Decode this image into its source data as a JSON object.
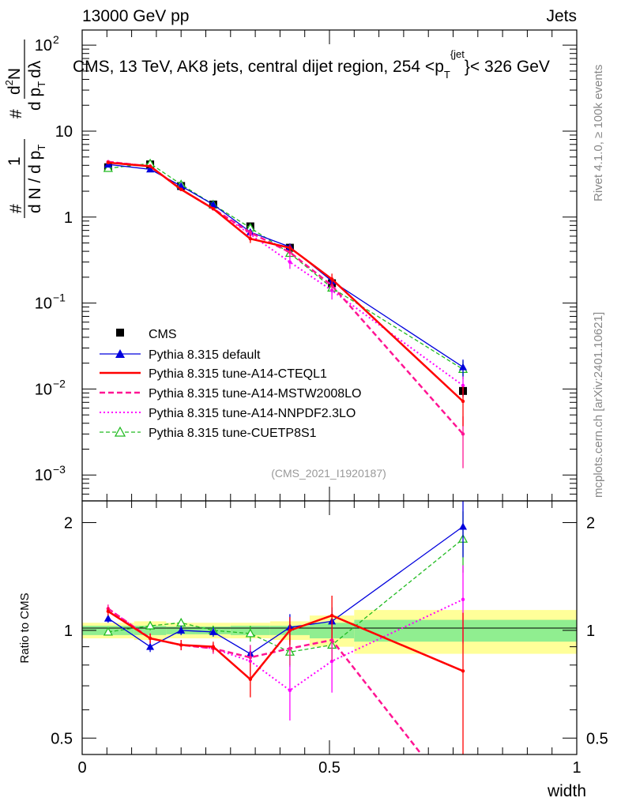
{
  "header": {
    "left": "13000 GeV pp",
    "right": "Jets",
    "side_top": "Rivet 4.1.0, ≥ 100k events",
    "side_bottom": "mcplots.cern.ch [arXiv:2401.10621]",
    "analysis_id": "(CMS_2021_I1920187)"
  },
  "colors": {
    "cms": "#000000",
    "default": "#0000dd",
    "cteql1": "#ff0000",
    "mstw": "#ff1493",
    "nnpdf": "#ff00ff",
    "cuetp8s1": "#22bb22",
    "band_inner": "#90ee90",
    "band_outer": "#ffff99"
  },
  "chart_data": [
    {
      "type": "line",
      "panel": "main",
      "title": "CMS, 13 TeV, AK8 jets, central dijet region, 254 <p_T^{jet}< 326 GeV",
      "title_parts": {
        "pre": "CMS, 13 TeV, AK8 jets, central dijet region, 254 <p",
        "sub": "T",
        "sup": "{jet",
        "close": "}",
        "post": "< 326 GeV"
      },
      "ylabel_parts": {
        "hash1": "#",
        "one": "1",
        "dN": "d N / d p",
        "T1": "T",
        "hash2": "#",
        "d2N": "d",
        "two": "2",
        "N": "N",
        "dpT": "d p",
        "T2": "T",
        "dlam": "dλ"
      },
      "xlim": [
        0,
        1
      ],
      "ylim": [
        0.0005,
        150
      ],
      "yscale": "log",
      "ytick_labels": [
        {
          "v": 100,
          "base": "10",
          "exp": "2"
        },
        {
          "v": 10,
          "base": "10",
          "exp": ""
        },
        {
          "v": 1,
          "base": "1",
          "exp": ""
        },
        {
          "v": 0.1,
          "base": "10",
          "exp": "−1"
        },
        {
          "v": 0.01,
          "base": "10",
          "exp": "−2"
        },
        {
          "v": 0.001,
          "base": "10",
          "exp": "−3"
        }
      ],
      "x": [
        0.0525,
        0.1375,
        0.2,
        0.265,
        0.34,
        0.42,
        0.505,
        0.77
      ],
      "cms": {
        "name": "CMS",
        "values": [
          3.8,
          4.1,
          2.3,
          1.4,
          0.78,
          0.44,
          0.17,
          0.0095
        ],
        "errors": [
          0.1,
          0.1,
          0.06,
          0.04,
          0.03,
          0.02,
          0.012,
          0.0012
        ],
        "x_halfwidth": [
          0.0525,
          0.0325,
          0.03,
          0.035,
          0.04,
          0.04,
          0.045,
          0.22
        ]
      },
      "series": [
        {
          "name": "Pythia 8.315 default",
          "key": "default",
          "values": [
            4.1,
            3.6,
            2.3,
            1.4,
            0.67,
            0.45,
            0.18,
            0.018
          ],
          "errors": [
            0.06,
            0.06,
            0.05,
            0.04,
            0.04,
            0.04,
            0.02,
            0.004
          ]
        },
        {
          "name": "Pythia 8.315 tune-A14-CTEQL1",
          "key": "cteql1",
          "values": [
            4.3,
            3.9,
            2.1,
            1.25,
            0.56,
            0.44,
            0.19,
            0.0072
          ],
          "errors": [
            0.07,
            0.07,
            0.06,
            0.05,
            0.06,
            0.04,
            0.03,
            0.0035
          ]
        },
        {
          "name": "Pythia 8.315 tune-A14-MSTW2008LO",
          "key": "mstw",
          "values": [
            4.4,
            3.9,
            2.1,
            1.25,
            0.66,
            0.39,
            0.16,
            0.003
          ],
          "errors": [
            0.07,
            0.07,
            0.06,
            0.05,
            0.05,
            0.04,
            0.02,
            0.0018
          ]
        },
        {
          "name": "Pythia 8.315 tune-A14-NNPDF2.3LO",
          "key": "nnpdf",
          "values": [
            4.4,
            3.9,
            2.1,
            1.25,
            0.63,
            0.3,
            0.14,
            0.011
          ],
          "errors": [
            0.07,
            0.07,
            0.06,
            0.05,
            0.05,
            0.05,
            0.03,
            0.003
          ]
        },
        {
          "name": "Pythia 8.315 tune-CUETP8S1",
          "key": "cuetp8s1",
          "values": [
            3.7,
            4.2,
            2.4,
            1.4,
            0.75,
            0.38,
            0.15,
            0.017
          ],
          "errors": [
            0.06,
            0.07,
            0.05,
            0.04,
            0.04,
            0.04,
            0.02,
            0.004
          ]
        }
      ]
    },
    {
      "type": "line",
      "panel": "ratio",
      "xlabel": "width",
      "ylabel": "Ratio to CMS",
      "xlim": [
        0,
        1
      ],
      "ylim": [
        0.45,
        2.3
      ],
      "yscale": "log",
      "ytick_labels": [
        {
          "v": 2,
          "label": "2"
        },
        {
          "v": 1,
          "label": "1"
        },
        {
          "v": 0.5,
          "label": "0.5"
        }
      ],
      "xtick_labels": [
        {
          "v": 0,
          "label": "0"
        },
        {
          "v": 0.5,
          "label": "0.5"
        },
        {
          "v": 1,
          "label": "1"
        }
      ],
      "x": [
        0.0525,
        0.1375,
        0.2,
        0.265,
        0.34,
        0.42,
        0.505,
        0.77
      ],
      "bins": [
        {
          "lo": 0.0,
          "hi": 0.105,
          "inner": [
            0.97,
            1.03
          ],
          "outer": [
            0.95,
            1.05
          ]
        },
        {
          "lo": 0.105,
          "hi": 0.17,
          "inner": [
            0.97,
            1.03
          ],
          "outer": [
            0.94,
            1.06
          ]
        },
        {
          "lo": 0.17,
          "hi": 0.23,
          "inner": [
            0.975,
            1.025
          ],
          "outer": [
            0.95,
            1.05
          ]
        },
        {
          "lo": 0.23,
          "hi": 0.3,
          "inner": [
            0.975,
            1.025
          ],
          "outer": [
            0.95,
            1.05
          ]
        },
        {
          "lo": 0.3,
          "hi": 0.38,
          "inner": [
            0.97,
            1.03
          ],
          "outer": [
            0.95,
            1.05
          ]
        },
        {
          "lo": 0.38,
          "hi": 0.46,
          "inner": [
            0.97,
            1.03
          ],
          "outer": [
            0.94,
            1.06
          ]
        },
        {
          "lo": 0.46,
          "hi": 0.55,
          "inner": [
            0.95,
            1.05
          ],
          "outer": [
            0.9,
            1.1
          ]
        },
        {
          "lo": 0.55,
          "hi": 1.0,
          "inner": [
            0.93,
            1.07
          ],
          "outer": [
            0.86,
            1.14
          ]
        }
      ],
      "series": [
        {
          "key": "default",
          "values": [
            1.08,
            0.9,
            1.0,
            0.99,
            0.86,
            1.02,
            1.06,
            1.95
          ],
          "errors": [
            0.03,
            0.03,
            0.03,
            0.03,
            0.05,
            0.09,
            0.1,
            0.35
          ]
        },
        {
          "key": "cteql1",
          "values": [
            1.13,
            0.95,
            0.91,
            0.9,
            0.73,
            1.0,
            1.1,
            0.77
          ],
          "errors": [
            0.03,
            0.03,
            0.03,
            0.03,
            0.08,
            0.09,
            0.15,
            0.35
          ]
        },
        {
          "key": "mstw",
          "values": [
            1.15,
            0.95,
            0.91,
            0.89,
            0.84,
            0.89,
            0.94,
            0.32
          ],
          "errors": [
            0.03,
            0.03,
            0.03,
            0.03,
            0.07,
            0.09,
            0.12,
            0.2
          ]
        },
        {
          "key": "nnpdf",
          "values": [
            1.15,
            0.95,
            0.91,
            0.89,
            0.82,
            0.68,
            0.82,
            1.22
          ],
          "errors": [
            0.03,
            0.03,
            0.03,
            0.03,
            0.07,
            0.12,
            0.15,
            0.3
          ]
        },
        {
          "key": "cuetp8s1",
          "values": [
            0.99,
            1.03,
            1.05,
            1.0,
            0.98,
            0.87,
            0.91,
            1.8
          ],
          "errors": [
            0.02,
            0.03,
            0.03,
            0.03,
            0.05,
            0.08,
            0.1,
            0.35
          ]
        }
      ]
    }
  ]
}
